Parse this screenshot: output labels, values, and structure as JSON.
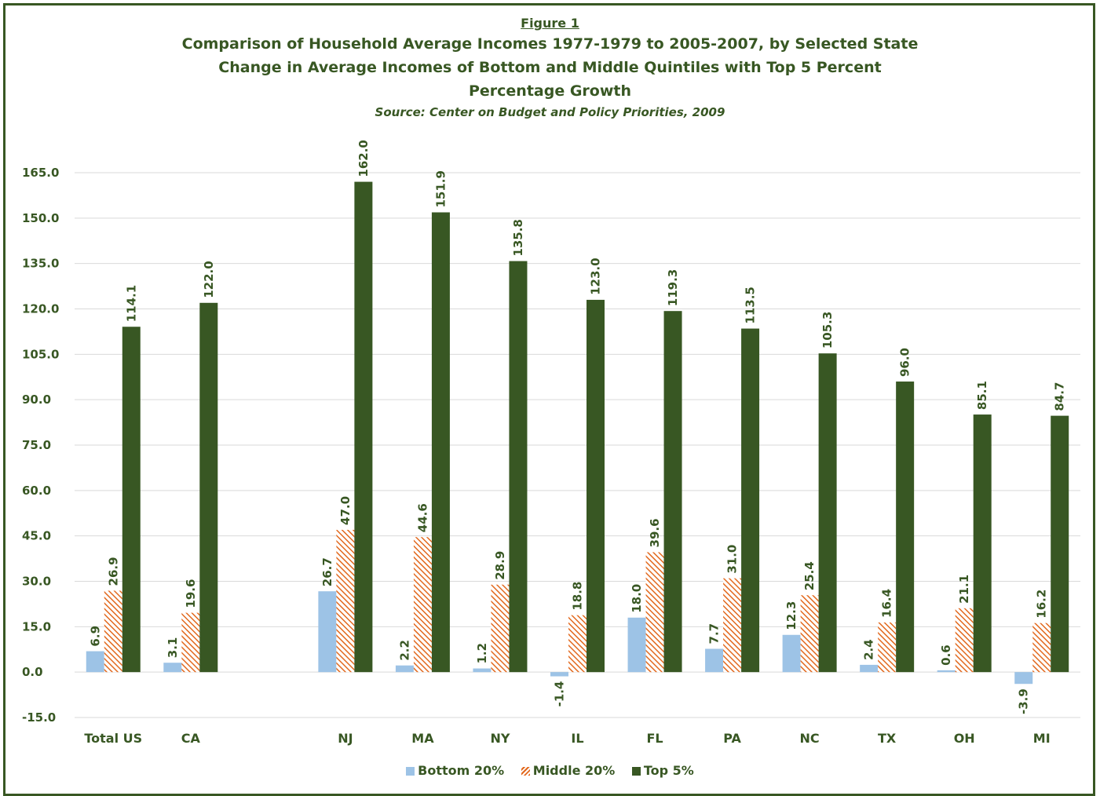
{
  "figure_label": "Figure 1",
  "title_line1": "Comparison of Household Average Incomes 1977-1979 to 2005-2007, by Selected State",
  "title_line2": "Change in Average Incomes of Bottom and Middle Quintiles with Top 5 Percent",
  "title_line3": "Percentage Growth",
  "source": "Source: Center on Budget and Policy Priorities, 2009",
  "colors": {
    "bottom": "#9dc3e6",
    "middle": "#e2691e",
    "top": "#385723",
    "text": "#385723",
    "grid": "#d9d9d9"
  },
  "chart_data": {
    "type": "bar",
    "categories": [
      "Total US",
      "CA",
      "",
      "NJ",
      "MA",
      "NY",
      "IL",
      "FL",
      "PA",
      "NC",
      "TX",
      "OH",
      "MI"
    ],
    "series": [
      {
        "name": "Bottom 20%",
        "values": [
          6.9,
          3.1,
          null,
          26.7,
          2.2,
          1.2,
          -1.4,
          18.0,
          7.7,
          12.3,
          2.4,
          0.6,
          -3.9
        ]
      },
      {
        "name": "Middle 20%",
        "values": [
          26.9,
          19.6,
          null,
          47.0,
          44.6,
          28.9,
          18.8,
          39.6,
          31.0,
          25.4,
          16.4,
          21.1,
          16.2
        ]
      },
      {
        "name": "Top 5%",
        "values": [
          114.1,
          122.0,
          null,
          162.0,
          151.9,
          135.8,
          123.0,
          119.3,
          113.5,
          105.3,
          96.0,
          85.1,
          84.7
        ]
      }
    ],
    "ylim": [
      -15,
      165
    ],
    "yticks": [
      "-15.0",
      "0.0",
      "15.0",
      "30.0",
      "45.0",
      "60.0",
      "75.0",
      "90.0",
      "105.0",
      "120.0",
      "135.0",
      "150.0",
      "165.0"
    ],
    "grid": true,
    "legend": "bottom"
  }
}
